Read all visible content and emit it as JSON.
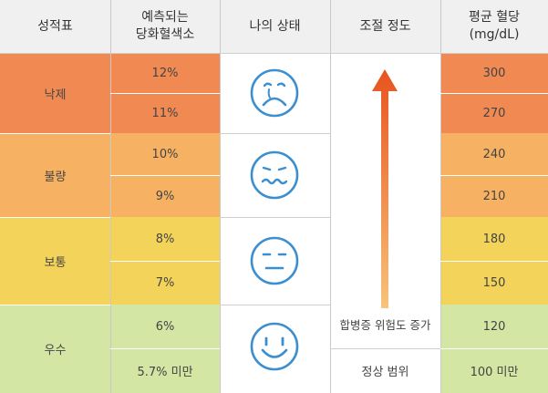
{
  "headers": {
    "grade": "성적표",
    "hba1c": "예측되는\n당화혈색소",
    "state": "나의 상태",
    "control": "조절 정도",
    "glucose": "평균 혈당\n(mg/dL)"
  },
  "grades": [
    "낙제",
    "불량",
    "보통",
    "우수"
  ],
  "hba1c_values": [
    "12%",
    "11%",
    "10%",
    "9%",
    "8%",
    "7%",
    "6%",
    "5.7% 미만"
  ],
  "glucose_values": [
    "300",
    "270",
    "240",
    "210",
    "180",
    "150",
    "120",
    "100 미만"
  ],
  "faces": [
    "crying-face",
    "nauseated-face",
    "neutral-face",
    "smiling-face"
  ],
  "control": {
    "arrow_label": "합병증 위험도 증가",
    "normal_label": "정상 범위"
  },
  "colors": {
    "fail": "#f08a52",
    "poor": "#f6b262",
    "fair": "#f4d35a",
    "good": "#d3e6a4",
    "icon": "#3b8fd0",
    "arrow_top": "#e8531f",
    "arrow_bottom": "#f7c37a"
  }
}
